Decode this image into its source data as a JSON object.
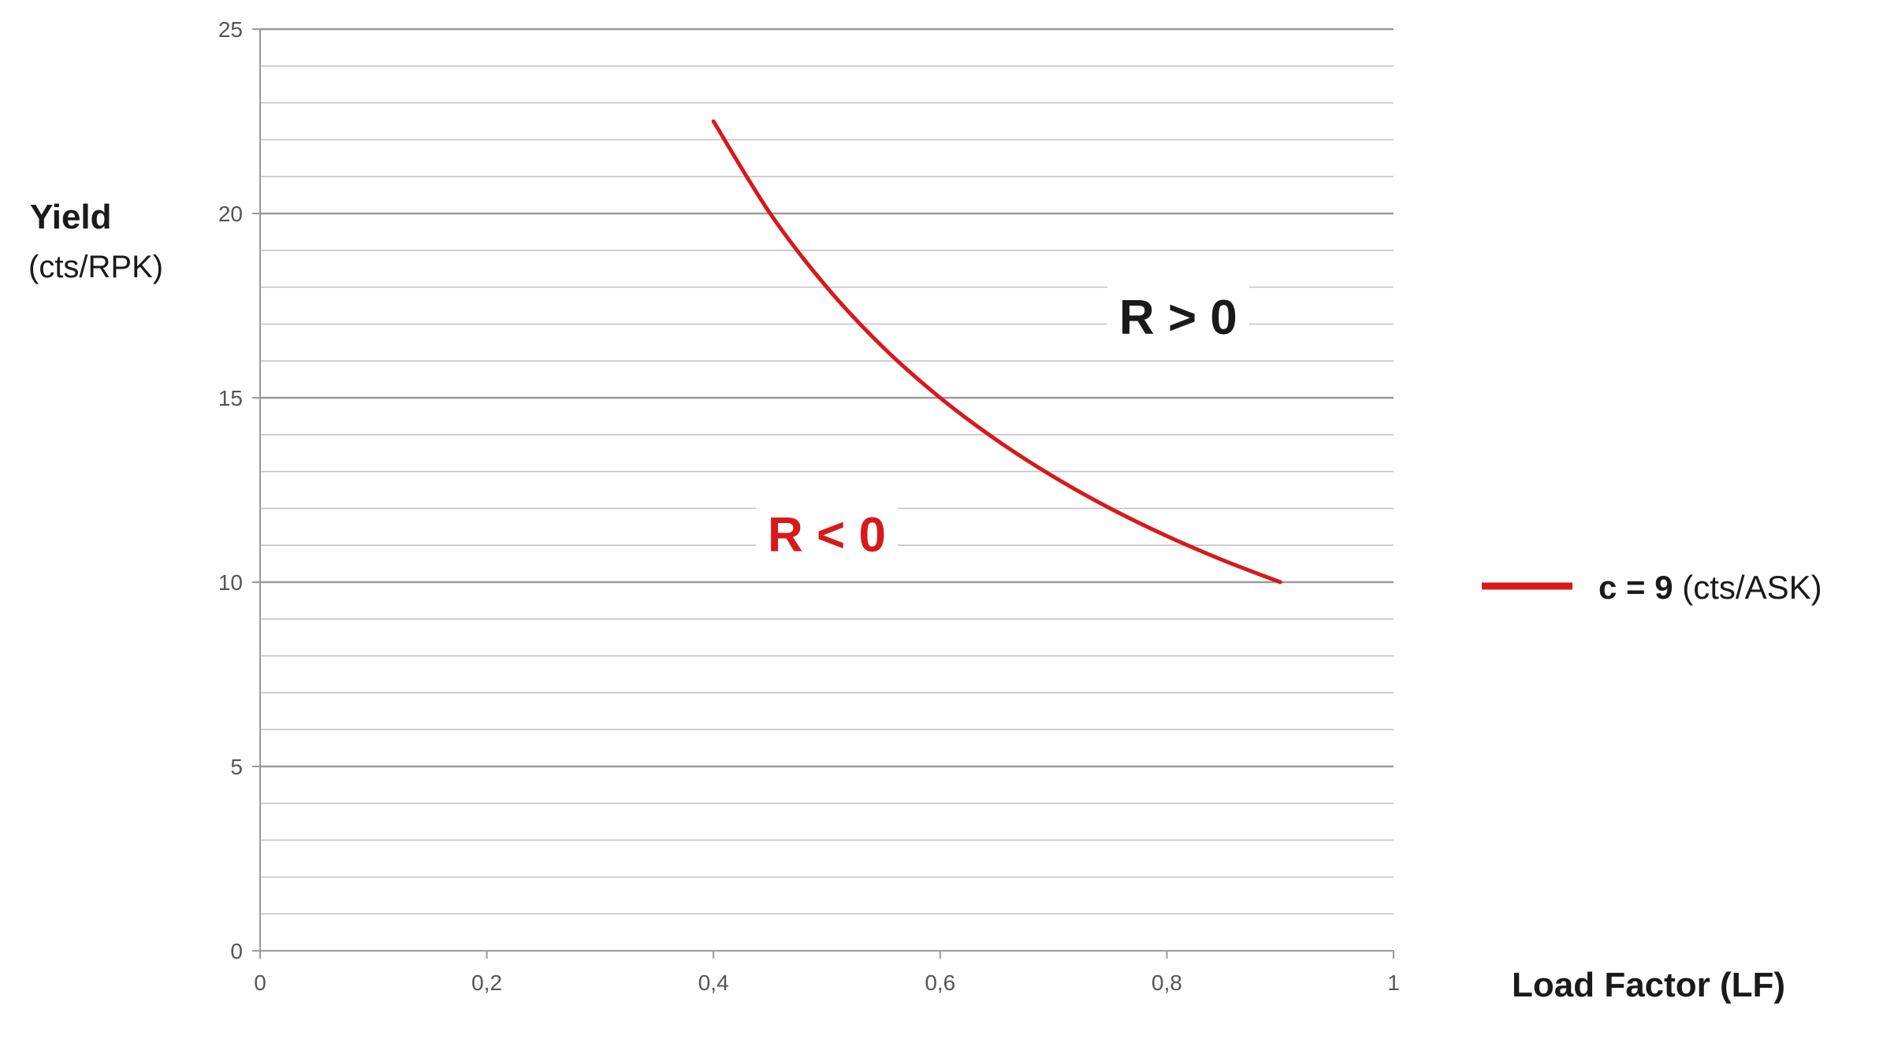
{
  "chart_data": {
    "type": "line",
    "title": "",
    "xlabel": "Load Factor (LF)",
    "ylabel": "Yield",
    "ylabel_unit": "(cts/RPK)",
    "xlim": [
      0,
      1
    ],
    "ylim": [
      0,
      25
    ],
    "x_ticks": [
      "0",
      "0,2",
      "0,4",
      "0,6",
      "0,8",
      "1"
    ],
    "y_ticks": [
      "0",
      "5",
      "10",
      "15",
      "20",
      "25"
    ],
    "grid": true,
    "grid_minor_step": 1,
    "legend_position": "right",
    "series": [
      {
        "name": "c = 9 (cts/ASK)",
        "legend_bold": "c = 9",
        "legend_rest": " (cts/ASK)",
        "color": "#d7191c",
        "x": [
          0.4,
          0.45,
          0.5,
          0.55,
          0.6,
          0.65,
          0.7,
          0.75,
          0.8,
          0.85,
          0.9
        ],
        "y": [
          22.5,
          20.0,
          18.0,
          16.36,
          15.0,
          13.85,
          12.86,
          12.0,
          11.25,
          10.59,
          10.0
        ]
      }
    ],
    "annotations": [
      {
        "text": "R > 0",
        "x": 0.81,
        "y": 17.2,
        "color": "#1a1a1a"
      },
      {
        "text": "R < 0",
        "x": 0.5,
        "y": 11.3,
        "color": "#d7191c"
      }
    ]
  }
}
